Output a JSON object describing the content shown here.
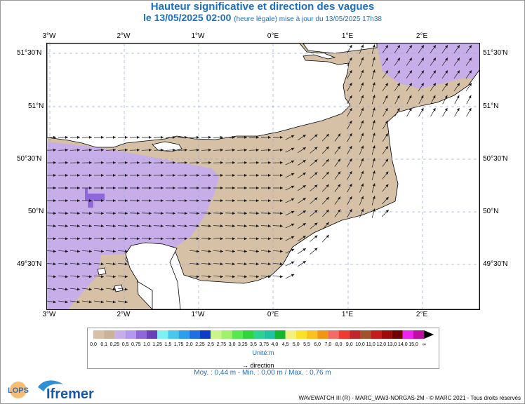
{
  "header": {
    "title": "Hauteur significative et direction des vagues",
    "date_line": "le 13/05/2025 02:00",
    "note": "(heure légale) mise à jour du 13/05/2025 17h38"
  },
  "axes": {
    "lon_labels": [
      "3°W",
      "2°W",
      "1°W",
      "0°E",
      "1°E",
      "2°E"
    ],
    "lat_labels": [
      "51°30'N",
      "51°N",
      "50°30'N",
      "50°N",
      "49°30'N"
    ]
  },
  "legend": {
    "values": [
      "0,0",
      "0,1",
      "0,25",
      "0,5",
      "0,75",
      "1,0",
      "1,25",
      "1,5",
      "1,75",
      "2,0",
      "2,25",
      "2,5",
      "2,75",
      "3,0",
      "3,25",
      "3,5",
      "3,75",
      "4,0",
      "4,5",
      "5,0",
      "5,5",
      "6,0",
      "7,0",
      "8,0",
      "9,0",
      "10,0",
      "11,0",
      "12,0",
      "13,0",
      "14,0",
      "15,0",
      "∞"
    ],
    "colors": [
      "#d6c1a6",
      "#c9b299",
      "#c7aee8",
      "#b497ee",
      "#8e67d8",
      "#6a3fba",
      "#7ef1f1",
      "#46c9ec",
      "#2d9fea",
      "#1f6fe0",
      "#0d3cc6",
      "#c9f58a",
      "#9ff26a",
      "#55e84f",
      "#2fd43e",
      "#2cd38d",
      "#1ec3a4",
      "#12b62f",
      "#f3f07c",
      "#fbe12b",
      "#fbc21f",
      "#f49413",
      "#f46a66",
      "#ee3a31",
      "#c0272d",
      "#a0522d",
      "#c71a1a",
      "#9e0a0a",
      "#6e0000",
      "#ee23ee",
      "#c00fa0",
      "#800060"
    ],
    "unit": "Unité:m",
    "direction_label": "direction"
  },
  "stats": "Moy. : 0,44 m   -   Min. : 0,00 m / Max. : 0,76 m",
  "credit": "WAVEWATCH III (R) - MARC_WW3-NORGAS-2M - © MARC 2021 - Tous droits réservés",
  "logos": {
    "lops": "LOPS",
    "ifremer": "Ifremer"
  },
  "map_colors": {
    "sea_low": "#d6c1a6",
    "sea_mid": "#c7aee8",
    "sea_high": "#8e67d8",
    "land": "#ffffff",
    "grid": "#9aa6d8"
  }
}
